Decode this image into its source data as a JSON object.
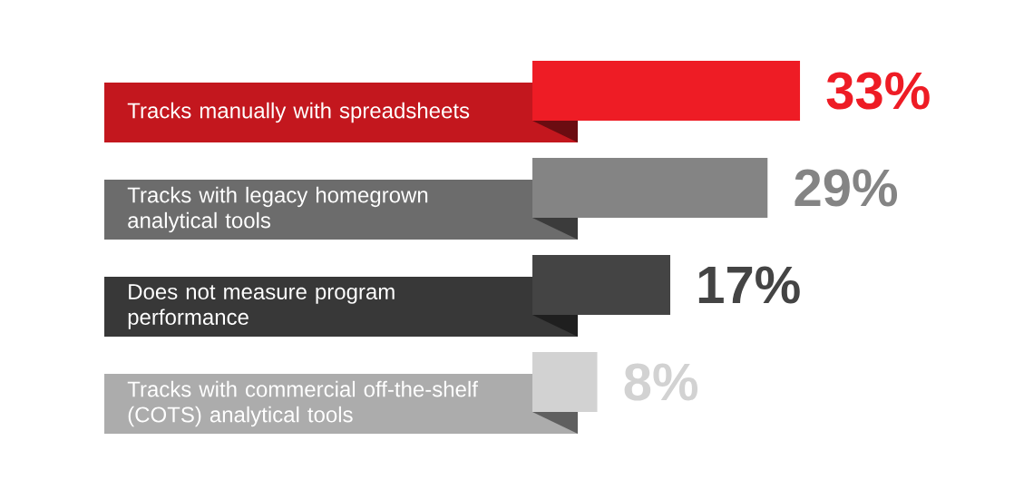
{
  "chart_data": {
    "type": "bar",
    "orientation": "horizontal",
    "categories": [
      "Tracks manually with spreadsheets",
      "Tracks with legacy homegrown analytical tools",
      "Does not measure program performance",
      "Tracks with commercial off-the-shelf (COTS) analytical tools"
    ],
    "values": [
      33,
      29,
      17,
      8
    ],
    "value_labels": [
      "33%",
      "29%",
      "17%",
      "8%"
    ],
    "colors": [
      "#ee1c25",
      "#848484",
      "#444444",
      "#d2d2d2"
    ],
    "data_labels": true
  }
}
